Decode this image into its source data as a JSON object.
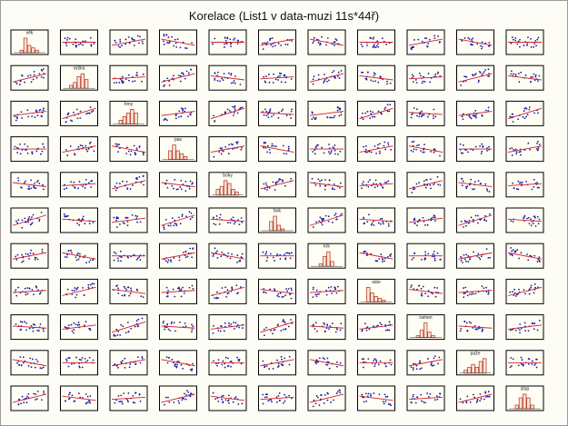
{
  "title": "Korelace (List1 v data-muzi 11s*44ř)",
  "chart_data": {
    "type": "scatter",
    "title": "Korelace (List1 v data-muzi 11s*44ř)",
    "layout": "scatterplot-matrix",
    "rows": 11,
    "cols": 11,
    "diagonal": "histogram",
    "off_diagonal": "scatter with linear regression line",
    "variables": [
      "věk",
      "výška",
      "hmy",
      "pas",
      "boky",
      "bok",
      "krk",
      "stán",
      "ramen",
      "paže",
      "stop"
    ],
    "histograms": [
      [
        1,
        6,
        3,
        2,
        1
      ],
      [
        1,
        2,
        4,
        5,
        3
      ],
      [
        1,
        2,
        3,
        4,
        3
      ],
      [
        3,
        5,
        3,
        2,
        1
      ],
      [
        2,
        3,
        5,
        4,
        2,
        1
      ],
      [
        5,
        8,
        3,
        1
      ],
      [
        1,
        4,
        6,
        2
      ],
      [
        8,
        5,
        3,
        2,
        1
      ],
      [
        1,
        4,
        8,
        3,
        1
      ],
      [
        1,
        2,
        3,
        2,
        4,
        5
      ],
      [
        1,
        3,
        4,
        3,
        1
      ]
    ],
    "point_color": "#1a1aa8",
    "line_color": "#d0202a",
    "bar_color": "#b8452c",
    "cell_border_color": "#000000",
    "grid": false,
    "legend": "none"
  }
}
